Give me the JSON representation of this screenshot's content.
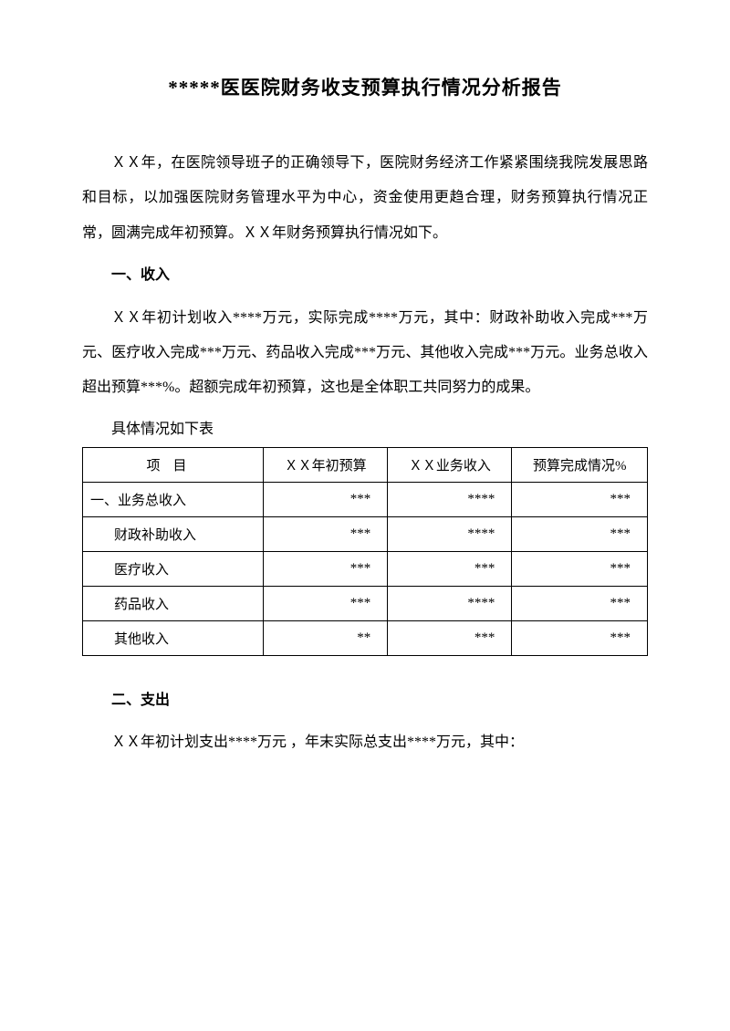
{
  "title": "*****医医院财务收支预算执行情况分析报告",
  "intro_paragraph": "ＸＸ年，在医院领导班子的正确领导下，医院财务经济工作紧紧围绕我院发展思路和目标，以加强医院财务管理水平为中心，资金使用更趋合理，财务预算执行情况正常，圆满完成年初预算。ＸＸ年财务预算执行情况如下。",
  "section1": {
    "heading": "一、收入",
    "paragraph": "ＸＸ年初计划收入****万元，实际完成****万元，其中：财政补助收入完成***万元、医疗收入完成***万元、药品收入完成***万元、其他收入完成***万元。业务总收入超出预算***%。超额完成年初预算，这也是全体职工共同努力的成果。",
    "table_intro": "具体情况如下表"
  },
  "table": {
    "headers": {
      "item": "项目",
      "budget": "ＸＸ年初预算",
      "revenue": "ＸＸ业务收入",
      "pct": "预算完成情况%"
    },
    "rows": [
      {
        "label": "一、业务总收入",
        "indent": false,
        "budget": "***",
        "revenue": "****",
        "pct": "***"
      },
      {
        "label": "财政补助收入",
        "indent": true,
        "budget": "***",
        "revenue": "****",
        "pct": "***"
      },
      {
        "label": "医疗收入",
        "indent": true,
        "budget": "***",
        "revenue": "***",
        "pct": "***"
      },
      {
        "label": "药品收入",
        "indent": true,
        "budget": "***",
        "revenue": "****",
        "pct": "***"
      },
      {
        "label": "其他收入",
        "indent": true,
        "budget": "**",
        "revenue": "***",
        "pct": "***"
      }
    ]
  },
  "section2": {
    "heading": "二、支出",
    "paragraph": "ＸＸ年初计划支出****万元 ，年末实际总支出****万元，其中："
  }
}
